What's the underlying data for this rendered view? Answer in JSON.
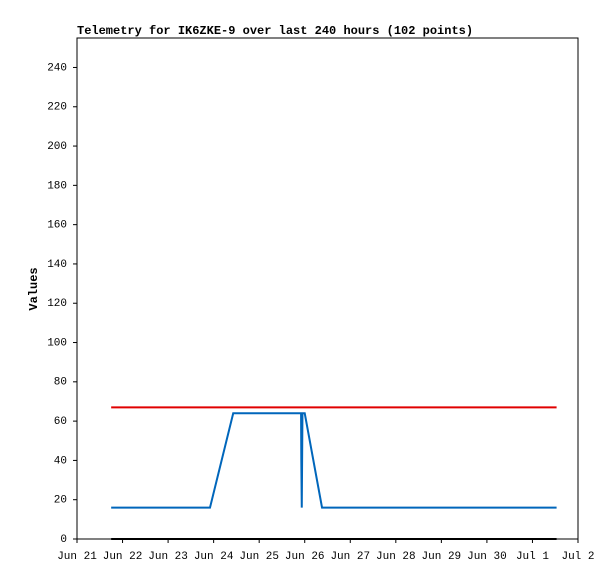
{
  "chart_data": {
    "type": "line",
    "title": "Telemetry for IK6ZKE-9 over last 240 hours (102 points)",
    "y_label": "Values",
    "xlim": [
      0,
      11
    ],
    "ylim": [
      0,
      255
    ],
    "xticks": [
      {
        "value": 0,
        "label": "Jun 21"
      },
      {
        "value": 1,
        "label": "Jun 22"
      },
      {
        "value": 2,
        "label": "Jun 23"
      },
      {
        "value": 3,
        "label": "Jun 24"
      },
      {
        "value": 4,
        "label": "Jun 25"
      },
      {
        "value": 5,
        "label": "Jun 26"
      },
      {
        "value": 6,
        "label": "Jun 27"
      },
      {
        "value": 7,
        "label": "Jun 28"
      },
      {
        "value": 8,
        "label": "Jun 29"
      },
      {
        "value": 9,
        "label": "Jun 30"
      },
      {
        "value": 10,
        "label": "Jul 1"
      },
      {
        "value": 11,
        "label": "Jul 2"
      }
    ],
    "yticks": [
      0,
      20,
      40,
      60,
      80,
      100,
      120,
      140,
      160,
      180,
      200,
      220,
      240
    ],
    "series": [
      {
        "color": "#000000",
        "x": [
          0.75,
          10.53
        ],
        "values": [
          0,
          0
        ]
      },
      {
        "color": "#e00000",
        "x": [
          0.75,
          10.53
        ],
        "values": [
          67,
          67
        ]
      },
      {
        "color": "#0066bb",
        "x": [
          0.75,
          2.92,
          3.43,
          4.92,
          4.925,
          4.935,
          4.95,
          5.0,
          5.38,
          10.53
        ],
        "values": [
          16,
          16,
          64,
          64,
          40,
          16,
          64,
          64,
          16,
          16
        ]
      }
    ]
  }
}
